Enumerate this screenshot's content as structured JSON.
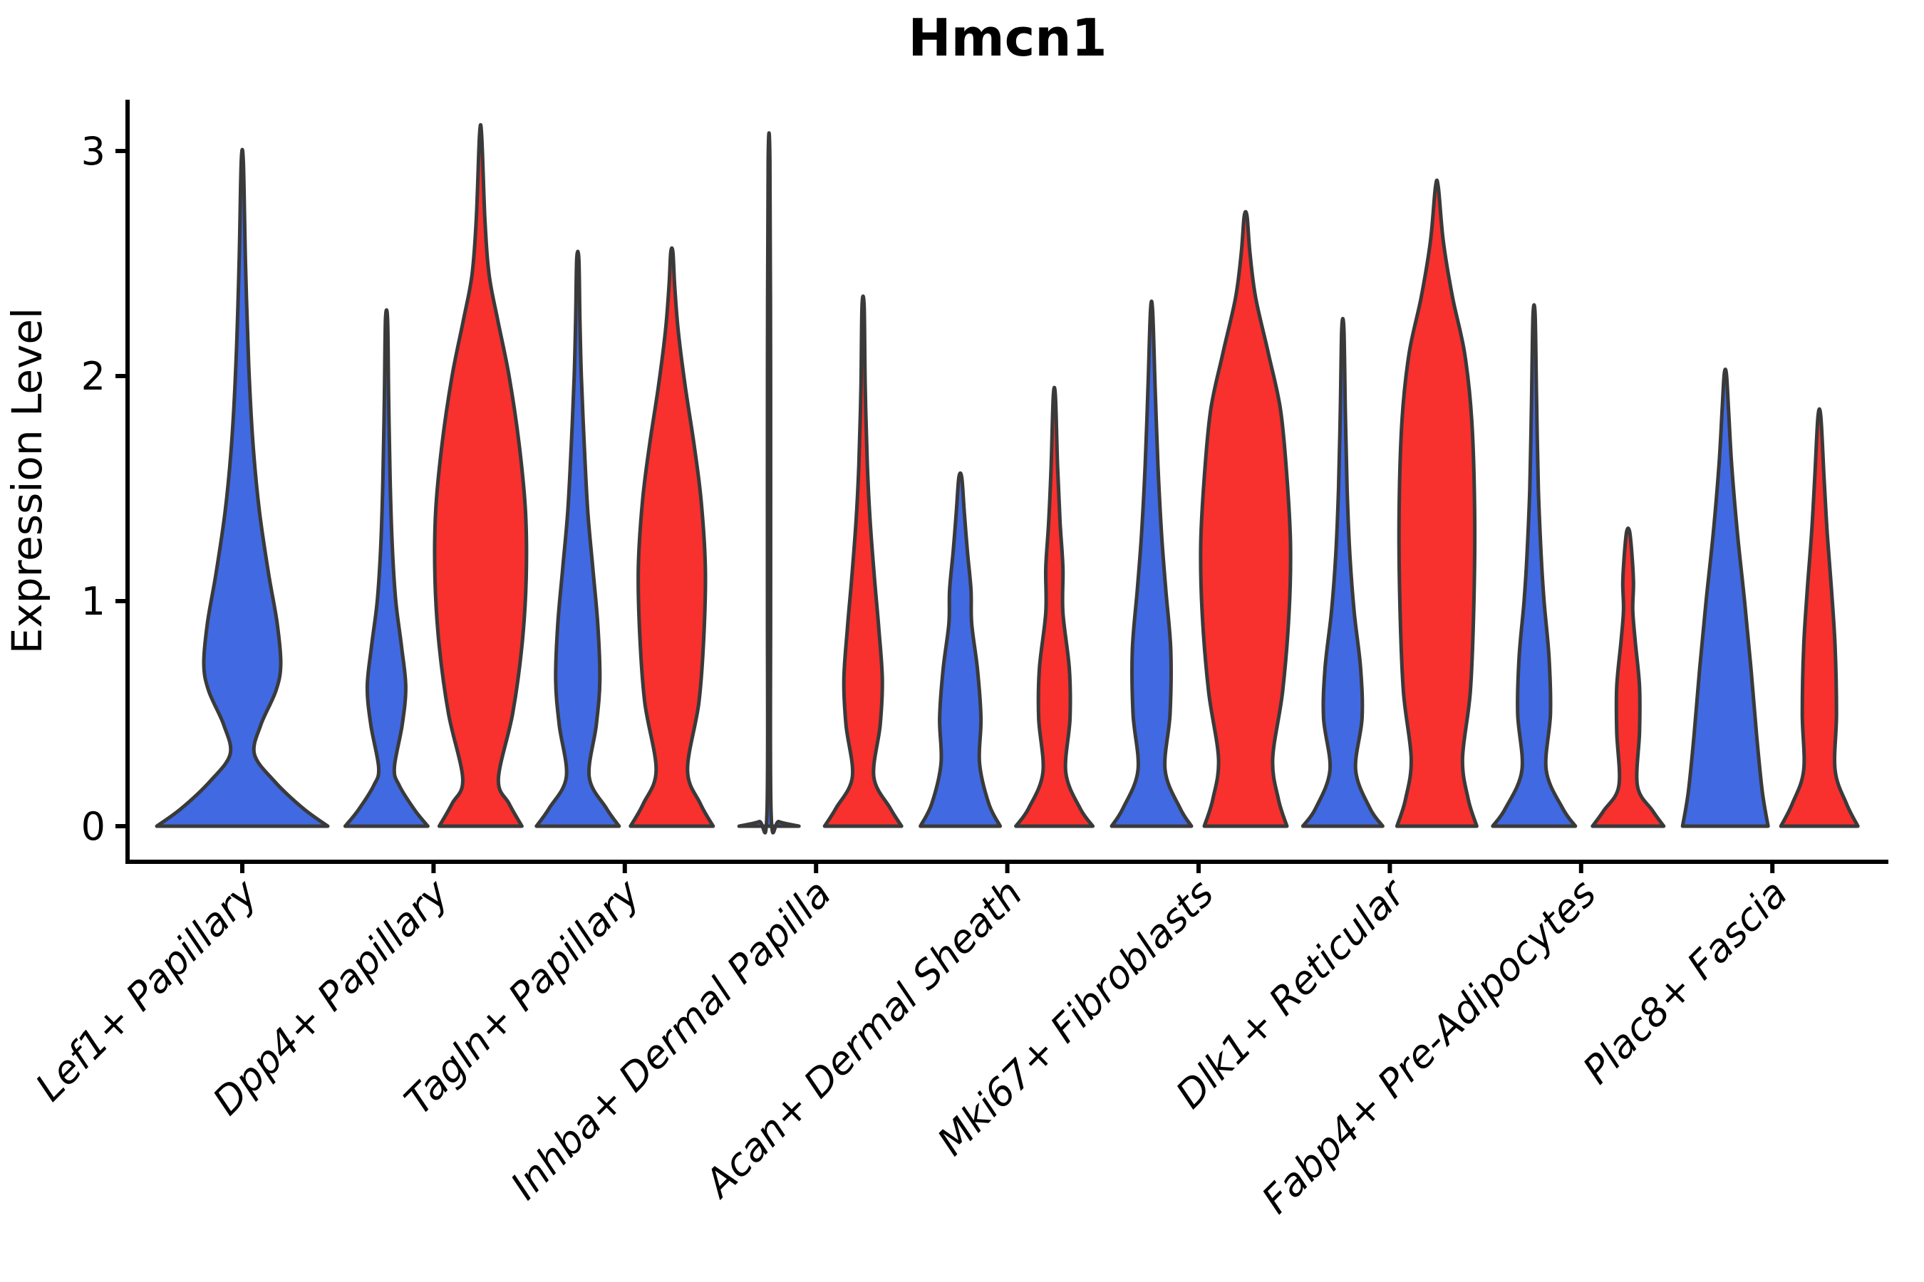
{
  "title": "Hmcn1",
  "y_axis": {
    "label": "Expression Level",
    "tick_labels": [
      "0",
      "1",
      "2",
      "3"
    ]
  },
  "chart_data": {
    "type": "violin",
    "title": "Hmcn1",
    "xlabel": "",
    "ylabel": "Expression Level",
    "ylim": [
      0,
      3.1
    ],
    "y_ticks": [
      0,
      1,
      2,
      3
    ],
    "grid": false,
    "legend": "none",
    "split_violins": true,
    "colors": {
      "blue": "#4169E1",
      "red": "#F8302E",
      "outline": "#3A3A3A"
    },
    "categories": [
      {
        "label": "Lef1+ Papillary",
        "violins": [
          {
            "side": "center",
            "color": "blue",
            "max_expression": 2.95,
            "profile": [
              [
                0,
                120
              ],
              [
                0.08,
                85
              ],
              [
                0.2,
                45
              ],
              [
                0.32,
                17
              ],
              [
                0.45,
                26
              ],
              [
                0.6,
                47
              ],
              [
                0.72,
                54
              ],
              [
                0.9,
                49
              ],
              [
                1.12,
                37
              ],
              [
                1.4,
                24
              ],
              [
                1.7,
                15
              ],
              [
                2.05,
                9
              ],
              [
                2.5,
                4.5
              ],
              [
                2.95,
                1.5
              ]
            ]
          }
        ]
      },
      {
        "label": "Dpp4+ Papillary",
        "violins": [
          {
            "side": "left",
            "color": "blue",
            "max_expression": 2.25,
            "profile": [
              [
                0,
                58
              ],
              [
                0.07,
                40
              ],
              [
                0.18,
                18
              ],
              [
                0.26,
                11
              ],
              [
                0.45,
                22
              ],
              [
                0.62,
                27
              ],
              [
                0.8,
                21
              ],
              [
                1.0,
                13
              ],
              [
                1.25,
                8
              ],
              [
                1.55,
                5
              ],
              [
                1.9,
                3
              ],
              [
                2.25,
                1.5
              ]
            ]
          },
          {
            "side": "right",
            "color": "red",
            "max_expression": 3.07,
            "profile": [
              [
                0,
                58
              ],
              [
                0.1,
                40
              ],
              [
                0.21,
                25
              ],
              [
                0.5,
                45
              ],
              [
                0.8,
                58
              ],
              [
                1.1,
                64
              ],
              [
                1.4,
                63
              ],
              [
                1.7,
                54
              ],
              [
                2.0,
                40
              ],
              [
                2.25,
                24
              ],
              [
                2.45,
                12
              ],
              [
                2.7,
                6
              ],
              [
                3.07,
                1.5
              ]
            ]
          }
        ]
      },
      {
        "label": "Tagln+ Papillary",
        "violins": [
          {
            "side": "left",
            "color": "blue",
            "max_expression": 2.52,
            "profile": [
              [
                0,
                58
              ],
              [
                0.08,
                40
              ],
              [
                0.22,
                16
              ],
              [
                0.45,
                26
              ],
              [
                0.65,
                31
              ],
              [
                0.9,
                28
              ],
              [
                1.15,
                21
              ],
              [
                1.4,
                14
              ],
              [
                1.7,
                9
              ],
              [
                2.0,
                5
              ],
              [
                2.25,
                3
              ],
              [
                2.52,
                1.5
              ]
            ]
          },
          {
            "side": "right",
            "color": "red",
            "max_expression": 2.55,
            "profile": [
              [
                0,
                58
              ],
              [
                0.1,
                40
              ],
              [
                0.25,
                22
              ],
              [
                0.55,
                38
              ],
              [
                0.85,
                45
              ],
              [
                1.15,
                47
              ],
              [
                1.45,
                41
              ],
              [
                1.7,
                31
              ],
              [
                1.95,
                19
              ],
              [
                2.2,
                9
              ],
              [
                2.4,
                4
              ],
              [
                2.55,
                1.5
              ]
            ]
          }
        ]
      },
      {
        "label": "Inhba+ Dermal Papilla",
        "violins": [
          {
            "side": "left",
            "color": "blue",
            "max_expression": 2.96,
            "profile": [
              [
                0,
                42
              ],
              [
                0.02,
                14
              ],
              [
                0.05,
                3
              ],
              [
                1.0,
                2.2
              ],
              [
                2.0,
                2.2
              ],
              [
                2.96,
                1.2
              ]
            ]
          },
          {
            "side": "right",
            "color": "red",
            "max_expression": 2.31,
            "profile": [
              [
                0,
                54
              ],
              [
                0.08,
                38
              ],
              [
                0.22,
                15
              ],
              [
                0.45,
                24
              ],
              [
                0.65,
                27
              ],
              [
                0.88,
                22
              ],
              [
                1.1,
                16
              ],
              [
                1.35,
                10
              ],
              [
                1.6,
                6
              ],
              [
                1.95,
                3
              ],
              [
                2.31,
                1.5
              ]
            ]
          }
        ]
      },
      {
        "label": "Acan+ Dermal Sheath",
        "violins": [
          {
            "side": "left",
            "color": "blue",
            "max_expression": 1.55,
            "profile": [
              [
                0,
                56
              ],
              [
                0.1,
                40
              ],
              [
                0.28,
                27
              ],
              [
                0.48,
                29
              ],
              [
                0.7,
                24
              ],
              [
                0.9,
                16
              ],
              [
                1.05,
                15
              ],
              [
                1.22,
                10
              ],
              [
                1.4,
                5.5
              ],
              [
                1.55,
                2
              ]
            ]
          },
          {
            "side": "right",
            "color": "red",
            "max_expression": 1.91,
            "profile": [
              [
                0,
                54
              ],
              [
                0.08,
                36
              ],
              [
                0.24,
                16
              ],
              [
                0.48,
                22
              ],
              [
                0.7,
                21
              ],
              [
                0.95,
                12
              ],
              [
                1.15,
                12
              ],
              [
                1.35,
                8
              ],
              [
                1.6,
                4.5
              ],
              [
                1.91,
                1.5
              ]
            ]
          }
        ]
      },
      {
        "label": "Mki67+ Fibroblasts",
        "violins": [
          {
            "side": "left",
            "color": "blue",
            "max_expression": 2.29,
            "profile": [
              [
                0,
                56
              ],
              [
                0.08,
                40
              ],
              [
                0.25,
                19
              ],
              [
                0.5,
                26
              ],
              [
                0.78,
                27
              ],
              [
                1.05,
                20
              ],
              [
                1.3,
                14
              ],
              [
                1.6,
                9
              ],
              [
                1.95,
                5
              ],
              [
                2.29,
                1.5
              ]
            ]
          },
          {
            "side": "right",
            "color": "red",
            "max_expression": 2.71,
            "profile": [
              [
                0,
                58
              ],
              [
                0.12,
                46
              ],
              [
                0.3,
                38
              ],
              [
                0.6,
                52
              ],
              [
                0.95,
                61
              ],
              [
                1.25,
                63
              ],
              [
                1.55,
                58
              ],
              [
                1.85,
                49
              ],
              [
                2.1,
                32
              ],
              [
                2.35,
                14
              ],
              [
                2.55,
                6
              ],
              [
                2.71,
                2
              ]
            ]
          }
        ]
      },
      {
        "label": "Dlk1+ Reticular",
        "violins": [
          {
            "side": "left",
            "color": "blue",
            "max_expression": 2.21,
            "profile": [
              [
                0,
                56
              ],
              [
                0.08,
                38
              ],
              [
                0.25,
                18
              ],
              [
                0.48,
                27
              ],
              [
                0.7,
                25
              ],
              [
                0.95,
                16
              ],
              [
                1.2,
                10
              ],
              [
                1.5,
                6
              ],
              [
                1.85,
                3.5
              ],
              [
                2.21,
                1.5
              ]
            ]
          },
          {
            "side": "right",
            "color": "red",
            "max_expression": 2.84,
            "profile": [
              [
                0,
                56
              ],
              [
                0.12,
                44
              ],
              [
                0.3,
                36
              ],
              [
                0.6,
                47
              ],
              [
                1.0,
                52
              ],
              [
                1.4,
                53
              ],
              [
                1.8,
                49
              ],
              [
                2.1,
                39
              ],
              [
                2.35,
                22
              ],
              [
                2.6,
                9
              ],
              [
                2.84,
                2
              ]
            ]
          }
        ]
      },
      {
        "label": "Fabp4+ Pre-Adipocytes",
        "violins": [
          {
            "side": "left",
            "color": "blue",
            "max_expression": 2.27,
            "profile": [
              [
                0,
                58
              ],
              [
                0.08,
                40
              ],
              [
                0.25,
                17
              ],
              [
                0.5,
                23
              ],
              [
                0.75,
                21
              ],
              [
                1.0,
                14
              ],
              [
                1.2,
                10
              ],
              [
                1.5,
                6
              ],
              [
                1.9,
                3.5
              ],
              [
                2.27,
                1.5
              ]
            ]
          },
          {
            "side": "right",
            "color": "red",
            "max_expression": 1.31,
            "profile": [
              [
                0,
                50
              ],
              [
                0.07,
                34
              ],
              [
                0.18,
                13
              ],
              [
                0.42,
                16
              ],
              [
                0.62,
                16
              ],
              [
                0.82,
                10
              ],
              [
                0.96,
                6.5
              ],
              [
                1.08,
                7.5
              ],
              [
                1.2,
                5.5
              ],
              [
                1.31,
                2
              ]
            ]
          }
        ]
      },
      {
        "label": "Plac8+ Fascia",
        "violins": [
          {
            "side": "left",
            "color": "blue",
            "max_expression": 2.01,
            "profile": [
              [
                0,
                60
              ],
              [
                0.15,
                52
              ],
              [
                0.4,
                44
              ],
              [
                0.7,
                36
              ],
              [
                1.0,
                27
              ],
              [
                1.3,
                17
              ],
              [
                1.6,
                9
              ],
              [
                1.85,
                4.5
              ],
              [
                2.01,
                1.5
              ]
            ]
          },
          {
            "side": "right",
            "color": "red",
            "max_expression": 1.82,
            "profile": [
              [
                0,
                54
              ],
              [
                0.1,
                38
              ],
              [
                0.25,
                22
              ],
              [
                0.5,
                24
              ],
              [
                0.8,
                22
              ],
              [
                1.05,
                17
              ],
              [
                1.3,
                11
              ],
              [
                1.55,
                6.5
              ],
              [
                1.82,
                2
              ]
            ]
          }
        ]
      }
    ]
  }
}
